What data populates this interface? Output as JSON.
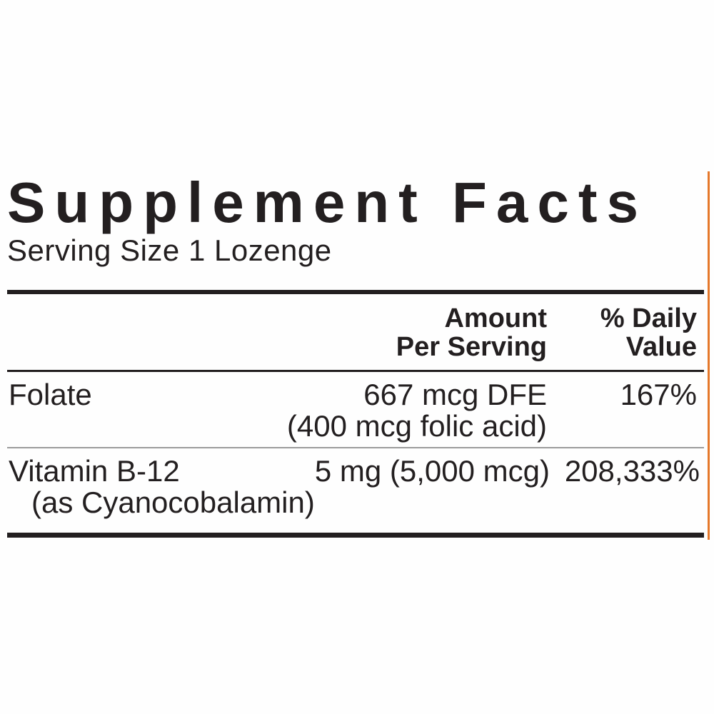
{
  "label": {
    "title": "Supplement Facts",
    "serving_size": "Serving Size 1 Lozenge",
    "columns": {
      "amount_line1": "Amount",
      "amount_line2": "Per Serving",
      "dv_line1": "% Daily",
      "dv_line2": "Value"
    },
    "rows": [
      {
        "name": "Folate",
        "amount": "667 mcg DFE",
        "amount_note": "(400 mcg folic acid)",
        "daily_value": "167%"
      },
      {
        "name": "Vitamin B-12",
        "name_note": "(as Cyanocobalamin)",
        "amount": "5 mg (5,000 mcg)",
        "daily_value": "208,333%"
      }
    ],
    "colors": {
      "text": "#231f20",
      "rule": "#231f20",
      "hairline": "#9b9b9b",
      "accent_orange": "#e5782b",
      "background": "#fefefe"
    }
  }
}
